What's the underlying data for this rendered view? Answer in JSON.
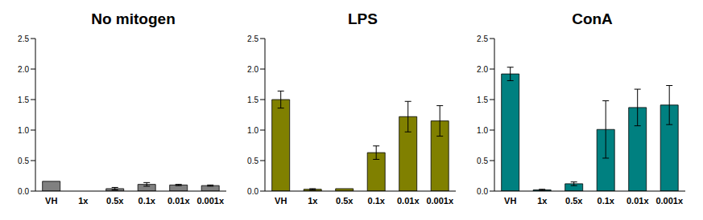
{
  "chart_data": [
    {
      "type": "bar",
      "title": "No mitogen",
      "categories": [
        "VH",
        "1x",
        "0.5x",
        "0.1x",
        "0.01x",
        "0.001x"
      ],
      "values": [
        0.16,
        0,
        0.04,
        0.11,
        0.1,
        0.09
      ],
      "errors": [
        0,
        0,
        0.02,
        0.03,
        0.01,
        0.01
      ],
      "color": "#808080",
      "ylim": [
        0,
        2.5
      ],
      "yticks": [
        {
          "value": 0,
          "label": "0.0"
        },
        0.5,
        {
          "value": 1,
          "label": "1.0"
        },
        1.5,
        {
          "value": 2,
          "label": "2.0"
        },
        2.5
      ],
      "grid": false
    },
    {
      "type": "bar",
      "title": "LPS",
      "categories": [
        "VH",
        "1x",
        "0.5x",
        "0.1x",
        "0.01x",
        "0.001x"
      ],
      "values": [
        1.5,
        0.03,
        0.04,
        0.63,
        1.22,
        1.15
      ],
      "errors": [
        0.14,
        0.01,
        0,
        0.11,
        0.25,
        0.25
      ],
      "color": "#808000",
      "ylim": [
        0,
        2.5
      ],
      "yticks": [
        {
          "value": 0,
          "label": "0.0"
        },
        0.5,
        {
          "value": 1,
          "label": "1.0"
        },
        1.5,
        {
          "value": 2,
          "label": "2.0"
        },
        2.5
      ],
      "grid": false
    },
    {
      "type": "bar",
      "title": "ConA",
      "categories": [
        "VH",
        "1x",
        "0.5x",
        "0.1x",
        "0.01x",
        "0.001x"
      ],
      "values": [
        1.92,
        0.02,
        0.12,
        1.01,
        1.37,
        1.41
      ],
      "errors": [
        0.11,
        0.01,
        0.03,
        0.47,
        0.3,
        0.32
      ],
      "color": "#008080",
      "ylim": [
        0,
        2.5
      ],
      "yticks": [
        {
          "value": 0,
          "label": "0.0"
        },
        0.5,
        {
          "value": 1,
          "label": "1.0"
        },
        1.5,
        {
          "value": 2,
          "label": "2.0"
        },
        2.5
      ],
      "grid": false
    }
  ]
}
